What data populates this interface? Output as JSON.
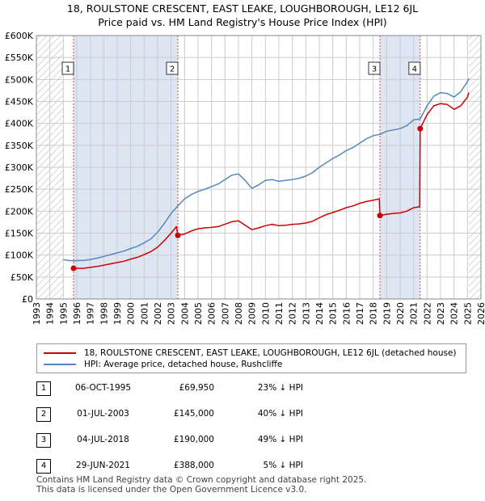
{
  "title_line1": "18, ROULSTONE CRESCENT, EAST LEAKE, LOUGHBOROUGH, LE12 6JL",
  "title_line2": "Price paid vs. HM Land Registry's House Price Index (HPI)",
  "colors": {
    "property": "#cc0000",
    "hpi": "#5588bb",
    "highlight": "#dde6f2",
    "grid": "#cccccc"
  },
  "legend": {
    "property": "18, ROULSTONE CRESCENT, EAST LEAKE, LOUGHBOROUGH, LE12 6JL (detached house)",
    "hpi": "HPI: Average price, detached house, Rushcliffe"
  },
  "sales": [
    {
      "num": "1",
      "date": "06-OCT-1995",
      "price": "£69,950",
      "hpi": "23% ↓ HPI"
    },
    {
      "num": "2",
      "date": "01-JUL-2003",
      "price": "£145,000",
      "hpi": "40% ↓ HPI"
    },
    {
      "num": "3",
      "date": "04-JUL-2018",
      "price": "£190,000",
      "hpi": "49% ↓ HPI"
    },
    {
      "num": "4",
      "date": "29-JUN-2021",
      "price": "£388,000",
      "hpi": "5% ↓ HPI"
    }
  ],
  "footer_line1": "Contains HM Land Registry data © Crown copyright and database right 2025.",
  "footer_line2": "This data is licensed under the Open Government Licence v3.0.",
  "chart_data": {
    "type": "line",
    "xlim": [
      1993,
      2026
    ],
    "ylim": [
      0,
      600000
    ],
    "x_ticks": [
      "1993",
      "1994",
      "1995",
      "1996",
      "1997",
      "1998",
      "1999",
      "2000",
      "2001",
      "2002",
      "2003",
      "2004",
      "2005",
      "2006",
      "2007",
      "2008",
      "2009",
      "2010",
      "2011",
      "2012",
      "2013",
      "2014",
      "2015",
      "2016",
      "2017",
      "2018",
      "2019",
      "2020",
      "2021",
      "2022",
      "2023",
      "2024",
      "2025",
      "2026"
    ],
    "y_ticks": [
      {
        "value": 0,
        "label": "£0"
      },
      {
        "value": 50000,
        "label": "£50K"
      },
      {
        "value": 100000,
        "label": "£100K"
      },
      {
        "value": 150000,
        "label": "£150K"
      },
      {
        "value": 200000,
        "label": "£200K"
      },
      {
        "value": 250000,
        "label": "£250K"
      },
      {
        "value": 300000,
        "label": "£300K"
      },
      {
        "value": 350000,
        "label": "£350K"
      },
      {
        "value": 400000,
        "label": "£400K"
      },
      {
        "value": 450000,
        "label": "£450K"
      },
      {
        "value": 500000,
        "label": "£500K"
      },
      {
        "value": 550000,
        "label": "£550K"
      },
      {
        "value": 600000,
        "label": "£600K"
      }
    ],
    "grid": true,
    "hatched_ranges": [
      [
        1993,
        1995.0
      ],
      [
        2025.1,
        2026
      ]
    ],
    "highlight_ranges": [
      [
        1995.76,
        2003.5
      ],
      [
        2018.5,
        2021.49
      ]
    ],
    "markers": [
      {
        "label": "1",
        "x": 1995.76,
        "y": 69950
      },
      {
        "label": "2",
        "x": 2003.5,
        "y": 145000
      },
      {
        "label": "3",
        "x": 2018.5,
        "y": 190000
      },
      {
        "label": "4",
        "x": 2021.49,
        "y": 388000
      }
    ],
    "series": [
      {
        "name": "HPI: Average price, detached house, Rushcliffe",
        "points": [
          [
            1995.0,
            90000
          ],
          [
            1995.3,
            88000
          ],
          [
            1995.76,
            87000
          ],
          [
            1996.0,
            87500
          ],
          [
            1996.5,
            88000
          ],
          [
            1997.0,
            90000
          ],
          [
            1997.5,
            93000
          ],
          [
            1998.0,
            97000
          ],
          [
            1998.5,
            101000
          ],
          [
            1999.0,
            105000
          ],
          [
            1999.5,
            109000
          ],
          [
            2000.0,
            115000
          ],
          [
            2000.5,
            120000
          ],
          [
            2001.0,
            128000
          ],
          [
            2001.5,
            137000
          ],
          [
            2002.0,
            152000
          ],
          [
            2002.5,
            172000
          ],
          [
            2003.0,
            195000
          ],
          [
            2003.5,
            212000
          ],
          [
            2004.0,
            228000
          ],
          [
            2004.5,
            238000
          ],
          [
            2005.0,
            245000
          ],
          [
            2005.5,
            250000
          ],
          [
            2006.0,
            256000
          ],
          [
            2006.5,
            262000
          ],
          [
            2007.0,
            272000
          ],
          [
            2007.5,
            282000
          ],
          [
            2008.0,
            285000
          ],
          [
            2008.5,
            270000
          ],
          [
            2009.0,
            252000
          ],
          [
            2009.5,
            260000
          ],
          [
            2010.0,
            270000
          ],
          [
            2010.5,
            272000
          ],
          [
            2011.0,
            268000
          ],
          [
            2011.5,
            270000
          ],
          [
            2012.0,
            272000
          ],
          [
            2012.5,
            275000
          ],
          [
            2013.0,
            280000
          ],
          [
            2013.5,
            288000
          ],
          [
            2014.0,
            300000
          ],
          [
            2014.5,
            310000
          ],
          [
            2015.0,
            320000
          ],
          [
            2015.5,
            328000
          ],
          [
            2016.0,
            338000
          ],
          [
            2016.5,
            345000
          ],
          [
            2017.0,
            355000
          ],
          [
            2017.5,
            365000
          ],
          [
            2018.0,
            372000
          ],
          [
            2018.5,
            375000
          ],
          [
            2019.0,
            382000
          ],
          [
            2019.5,
            385000
          ],
          [
            2020.0,
            388000
          ],
          [
            2020.5,
            395000
          ],
          [
            2021.0,
            408000
          ],
          [
            2021.49,
            410000
          ],
          [
            2022.0,
            440000
          ],
          [
            2022.5,
            462000
          ],
          [
            2023.0,
            470000
          ],
          [
            2023.5,
            468000
          ],
          [
            2024.0,
            460000
          ],
          [
            2024.5,
            472000
          ],
          [
            2025.0,
            495000
          ],
          [
            2025.1,
            502000
          ]
        ]
      },
      {
        "name": "18, ROULSTONE CRESCENT, EAST LEAKE, LOUGHBOROUGH, LE12 6JL (detached house)",
        "points": [
          [
            1995.76,
            69950
          ],
          [
            1996.5,
            70000
          ],
          [
            1997.0,
            72000
          ],
          [
            1997.5,
            74000
          ],
          [
            1998.0,
            77000
          ],
          [
            1998.5,
            80000
          ],
          [
            1999.0,
            83000
          ],
          [
            1999.5,
            86000
          ],
          [
            2000.0,
            91000
          ],
          [
            2000.5,
            95000
          ],
          [
            2001.0,
            101000
          ],
          [
            2001.5,
            108000
          ],
          [
            2002.0,
            118000
          ],
          [
            2002.5,
            133000
          ],
          [
            2003.0,
            150000
          ],
          [
            2003.4,
            165000
          ],
          [
            2003.5,
            145000
          ],
          [
            2004.0,
            148000
          ],
          [
            2004.5,
            155000
          ],
          [
            2005.0,
            160000
          ],
          [
            2005.5,
            162000
          ],
          [
            2006.0,
            163000
          ],
          [
            2006.5,
            165000
          ],
          [
            2007.0,
            170000
          ],
          [
            2007.5,
            176000
          ],
          [
            2008.0,
            178000
          ],
          [
            2008.5,
            168000
          ],
          [
            2009.0,
            158000
          ],
          [
            2009.5,
            162000
          ],
          [
            2010.0,
            167000
          ],
          [
            2010.5,
            170000
          ],
          [
            2011.0,
            167000
          ],
          [
            2011.5,
            168000
          ],
          [
            2012.0,
            170000
          ],
          [
            2012.5,
            171000
          ],
          [
            2013.0,
            173000
          ],
          [
            2013.5,
            177000
          ],
          [
            2014.0,
            185000
          ],
          [
            2014.5,
            192000
          ],
          [
            2015.0,
            197000
          ],
          [
            2015.5,
            202000
          ],
          [
            2016.0,
            208000
          ],
          [
            2016.5,
            212000
          ],
          [
            2017.0,
            218000
          ],
          [
            2017.5,
            222000
          ],
          [
            2018.0,
            225000
          ],
          [
            2018.45,
            228000
          ],
          [
            2018.5,
            190000
          ],
          [
            2019.0,
            193000
          ],
          [
            2019.5,
            195000
          ],
          [
            2020.0,
            196000
          ],
          [
            2020.5,
            200000
          ],
          [
            2021.0,
            208000
          ],
          [
            2021.45,
            210000
          ],
          [
            2021.49,
            388000
          ],
          [
            2022.0,
            420000
          ],
          [
            2022.5,
            440000
          ],
          [
            2023.0,
            445000
          ],
          [
            2023.5,
            443000
          ],
          [
            2024.0,
            432000
          ],
          [
            2024.5,
            440000
          ],
          [
            2025.0,
            460000
          ],
          [
            2025.1,
            470000
          ]
        ]
      }
    ]
  }
}
